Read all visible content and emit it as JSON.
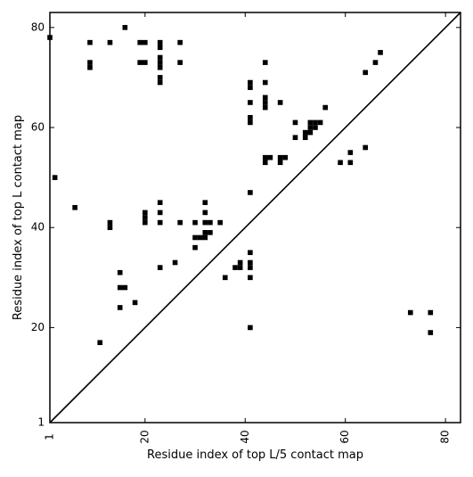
{
  "chart_data": {
    "type": "scatter",
    "title": "",
    "xlabel": "Residue index of top L/5 contact map",
    "ylabel": "Residue index of top L contact map",
    "xlim": [
      1,
      83
    ],
    "ylim": [
      1,
      83
    ],
    "xticks": [
      1,
      20,
      40,
      60,
      80
    ],
    "yticks": [
      1,
      20,
      40,
      60,
      80
    ],
    "xtick_labels": [
      "1",
      "20",
      "40",
      "60",
      "80"
    ],
    "ytick_labels": [
      "1",
      "20",
      "40",
      "60",
      "80"
    ],
    "x_tick_rotation": -90,
    "grid": false,
    "legend": "none",
    "diagonal": [
      1,
      83
    ],
    "marker_color": "#000000",
    "series": [
      {
        "points": [
          [
            1,
            78
          ],
          [
            2,
            50
          ],
          [
            6,
            44
          ],
          [
            9,
            77
          ],
          [
            9,
            73
          ],
          [
            9,
            72
          ],
          [
            11,
            17
          ],
          [
            13,
            77
          ],
          [
            13,
            41
          ],
          [
            13,
            40
          ],
          [
            15,
            31
          ],
          [
            15,
            28
          ],
          [
            15,
            24
          ],
          [
            16,
            80
          ],
          [
            16,
            28
          ],
          [
            18,
            25
          ],
          [
            19,
            77
          ],
          [
            19,
            73
          ],
          [
            20,
            77
          ],
          [
            20,
            73
          ],
          [
            20,
            43
          ],
          [
            20,
            42
          ],
          [
            20,
            41
          ],
          [
            23,
            77
          ],
          [
            23,
            76
          ],
          [
            23,
            74
          ],
          [
            23,
            73
          ],
          [
            23,
            72
          ],
          [
            23,
            70
          ],
          [
            23,
            69
          ],
          [
            23,
            45
          ],
          [
            23,
            43
          ],
          [
            23,
            41
          ],
          [
            23,
            32
          ],
          [
            26,
            33
          ],
          [
            27,
            77
          ],
          [
            27,
            73
          ],
          [
            27,
            41
          ],
          [
            30,
            41
          ],
          [
            30,
            38
          ],
          [
            30,
            36
          ],
          [
            31,
            38
          ],
          [
            32,
            45
          ],
          [
            32,
            43
          ],
          [
            32,
            41
          ],
          [
            32,
            39
          ],
          [
            32,
            38
          ],
          [
            33,
            41
          ],
          [
            33,
            39
          ],
          [
            35,
            41
          ],
          [
            36,
            30
          ],
          [
            38,
            32
          ],
          [
            39,
            33
          ],
          [
            39,
            32
          ],
          [
            41,
            69
          ],
          [
            41,
            68
          ],
          [
            41,
            65
          ],
          [
            41,
            62
          ],
          [
            41,
            61
          ],
          [
            41,
            47
          ],
          [
            41,
            35
          ],
          [
            41,
            33
          ],
          [
            41,
            32
          ],
          [
            41,
            30
          ],
          [
            41,
            20
          ],
          [
            44,
            73
          ],
          [
            44,
            69
          ],
          [
            44,
            66
          ],
          [
            44,
            65
          ],
          [
            44,
            64
          ],
          [
            44,
            54
          ],
          [
            44,
            53
          ],
          [
            45,
            54
          ],
          [
            47,
            65
          ],
          [
            47,
            54
          ],
          [
            47,
            53
          ],
          [
            48,
            54
          ],
          [
            50,
            61
          ],
          [
            50,
            58
          ],
          [
            52,
            59
          ],
          [
            52,
            58
          ],
          [
            53,
            61
          ],
          [
            53,
            60
          ],
          [
            53,
            59
          ],
          [
            54,
            61
          ],
          [
            54,
            60
          ],
          [
            55,
            61
          ],
          [
            56,
            64
          ],
          [
            59,
            53
          ],
          [
            61,
            55
          ],
          [
            61,
            53
          ],
          [
            64,
            71
          ],
          [
            64,
            56
          ],
          [
            66,
            73
          ],
          [
            67,
            75
          ],
          [
            73,
            23
          ],
          [
            77,
            23
          ],
          [
            77,
            19
          ]
        ]
      }
    ]
  }
}
